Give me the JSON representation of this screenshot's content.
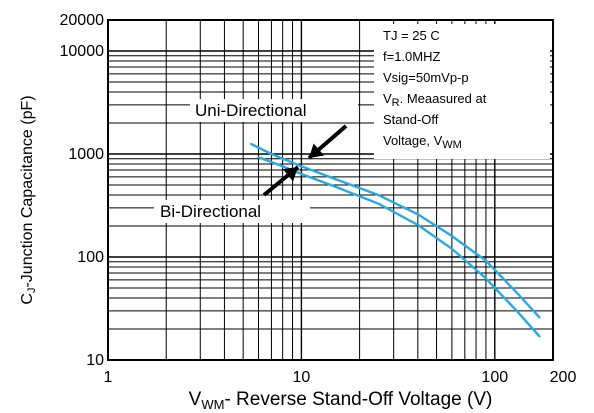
{
  "chart_data": {
    "type": "line",
    "title": "",
    "xscale": "log",
    "yscale": "log",
    "xlim": [
      1,
      200
    ],
    "ylim": [
      10,
      20000
    ],
    "xticks": [
      1,
      10,
      100,
      200
    ],
    "yticks": [
      10,
      100,
      1000,
      10000,
      20000
    ],
    "xtick_labels": [
      "1",
      "10",
      "100",
      "200"
    ],
    "ytick_labels": [
      "10",
      "100",
      "1000",
      "10000",
      "20000"
    ],
    "xlabel": {
      "prefix": "V",
      "sub": "WM",
      "text": "- Reverse Stand-Off Voltage (V)"
    },
    "ylabel": {
      "prefix": "C",
      "sub": "J",
      "text": "-Junction Capacitance (pF)"
    },
    "grid": true,
    "series": [
      {
        "name": "Uni-Directional",
        "color": "#29a9e1",
        "x": [
          5.5,
          7,
          10,
          15,
          25,
          40,
          60,
          90,
          130,
          170
        ],
        "y": [
          1250,
          1000,
          760,
          570,
          400,
          260,
          160,
          92,
          45,
          26
        ]
      },
      {
        "name": "Bi-Directional",
        "color": "#29a9e1",
        "x": [
          6,
          8,
          10,
          15,
          25,
          40,
          60,
          90,
          130,
          170
        ],
        "y": [
          930,
          760,
          640,
          480,
          330,
          205,
          120,
          62,
          30,
          17
        ]
      }
    ],
    "annotations": {
      "uni_label": "Uni-Directional",
      "bi_label": "Bi-Directional",
      "conditions": [
        {
          "text": "TJ = 25 C"
        },
        {
          "text": "f=1.0MHZ"
        },
        {
          "text": "Vsig=50mVp-p"
        },
        {
          "prefix": "V",
          "sub": "R",
          "text": ". Meaasured at"
        },
        {
          "text": "Stand-Off"
        },
        {
          "prefix": "Voltage, V",
          "sub": "WM",
          "text": ""
        }
      ]
    }
  }
}
